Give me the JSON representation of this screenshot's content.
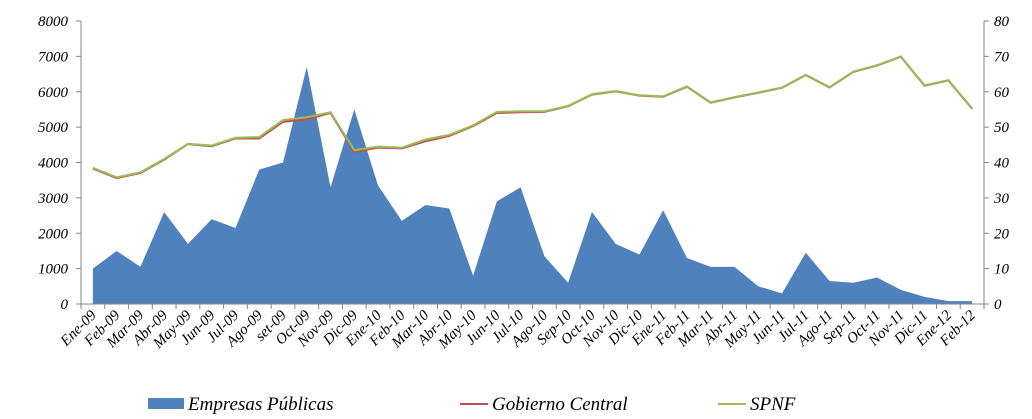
{
  "chart_data": {
    "type": "area_line",
    "categories": [
      "Ene-09",
      "Feb-09",
      "Mar-09",
      "Abr-09",
      "May-09",
      "Jun-09",
      "Jul-09",
      "Ago-09",
      "set-09",
      "Oct-09",
      "Nov-09",
      "Dic-09",
      "Ene-10",
      "Feb-10",
      "Mar-10",
      "Abr-10",
      "May-10",
      "Jun-10",
      "Jul-10",
      "Ago-10",
      "Sep-10",
      "Oct-10",
      "Nov-10",
      "Dic-10",
      "Ene-11",
      "Feb-11",
      "Mar-11",
      "Abr-11",
      "May-11",
      "Jun-11",
      "Jul-11",
      "Ago-11",
      "Sep-11",
      "Oct-11",
      "Nov-11",
      "Dic-11",
      "Ene-12",
      "Feb-12"
    ],
    "series": [
      {
        "name": "Empresas Públicas",
        "color": "#4f81bd",
        "type": "area",
        "axis": "y",
        "values": [
          1000,
          1500,
          1050,
          2600,
          1700,
          2400,
          2150,
          3800,
          4000,
          6700,
          3300,
          5500,
          3350,
          2350,
          2800,
          2700,
          800,
          2900,
          3300,
          1350,
          600,
          2600,
          1700,
          1400,
          2650,
          1300,
          1050,
          1050,
          500,
          300,
          1450,
          650,
          600,
          750,
          400,
          200,
          80,
          80
        ]
      },
      {
        "name": "Gobierno Central",
        "color": "#c0504d",
        "type": "line",
        "axis": "y2",
        "values": [
          38.3,
          35.6,
          37,
          40.8,
          45.2,
          44.6,
          46.8,
          46.8,
          51.5,
          52.2,
          54,
          43,
          44.2,
          44,
          46,
          47.5,
          50.3,
          54,
          54.2,
          54.3,
          55.9,
          59.2,
          60.1,
          58.9,
          58.6,
          61.4,
          56.9,
          58.4,
          59.7,
          61.1,
          64.7,
          61.2,
          65.6,
          67.4,
          69.9,
          61.7,
          63.2,
          55.2
        ]
      },
      {
        "name": "SPNF",
        "color": "#9bbb59",
        "type": "line",
        "axis": "y2",
        "values": [
          38.5,
          35.8,
          37.2,
          41,
          45.3,
          44.8,
          47,
          47.2,
          52,
          52.8,
          54.2,
          43.5,
          44.5,
          44.2,
          46.5,
          47.8,
          50.5,
          54.3,
          54.5,
          54.5,
          56,
          59.3,
          60.2,
          59,
          58.7,
          61.5,
          57,
          58.5,
          59.8,
          61.2,
          64.8,
          61.3,
          65.7,
          67.5,
          70,
          61.8,
          63.3,
          55.3
        ]
      }
    ],
    "ylim": [
      0,
      8000
    ],
    "yticks": [
      0,
      1000,
      2000,
      3000,
      4000,
      5000,
      6000,
      7000,
      8000
    ],
    "y2lim": [
      0,
      80
    ],
    "y2ticks": [
      0,
      10,
      20,
      30,
      40,
      50,
      60,
      70,
      80
    ],
    "grid": false,
    "legend": "bottom"
  }
}
